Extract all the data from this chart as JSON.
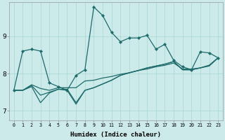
{
  "xlabel": "Humidex (Indice chaleur)",
  "background_color": "#cceaea",
  "line_color": "#1e6b6b",
  "xlim": [
    -0.5,
    23.5
  ],
  "ylim": [
    6.75,
    9.9
  ],
  "xticks": [
    0,
    1,
    2,
    3,
    4,
    5,
    6,
    7,
    8,
    9,
    10,
    11,
    12,
    13,
    14,
    15,
    16,
    17,
    18,
    19,
    20,
    21,
    22,
    23
  ],
  "yticks": [
    7,
    8,
    9
  ],
  "series_main": [
    7.55,
    8.6,
    8.65,
    8.6,
    7.75,
    7.65,
    7.55,
    7.95,
    8.1,
    9.78,
    9.55,
    9.1,
    8.85,
    8.95,
    8.95,
    9.02,
    8.65,
    8.78,
    8.35,
    8.18,
    8.1,
    8.58,
    8.55,
    8.42
  ],
  "series_a": [
    7.55,
    7.55,
    7.7,
    7.6,
    7.55,
    7.62,
    7.62,
    7.62,
    7.8,
    7.82,
    7.88,
    7.92,
    7.98,
    8.02,
    8.08,
    8.12,
    8.18,
    8.22,
    8.28,
    8.12,
    8.12,
    8.15,
    8.2,
    8.42
  ],
  "series_b": [
    7.55,
    7.55,
    7.68,
    7.42,
    7.5,
    7.58,
    7.58,
    7.22,
    7.55,
    7.62,
    7.72,
    7.82,
    7.95,
    8.02,
    8.08,
    8.15,
    8.2,
    8.25,
    8.32,
    8.1,
    8.1,
    8.15,
    8.22,
    8.42
  ],
  "series_c": [
    7.55,
    7.55,
    7.65,
    7.22,
    7.48,
    7.58,
    7.55,
    7.18,
    7.55,
    7.62,
    7.72,
    7.82,
    7.95,
    8.02,
    8.08,
    8.15,
    8.2,
    8.25,
    8.32,
    8.1,
    8.1,
    8.15,
    8.22,
    8.42
  ]
}
